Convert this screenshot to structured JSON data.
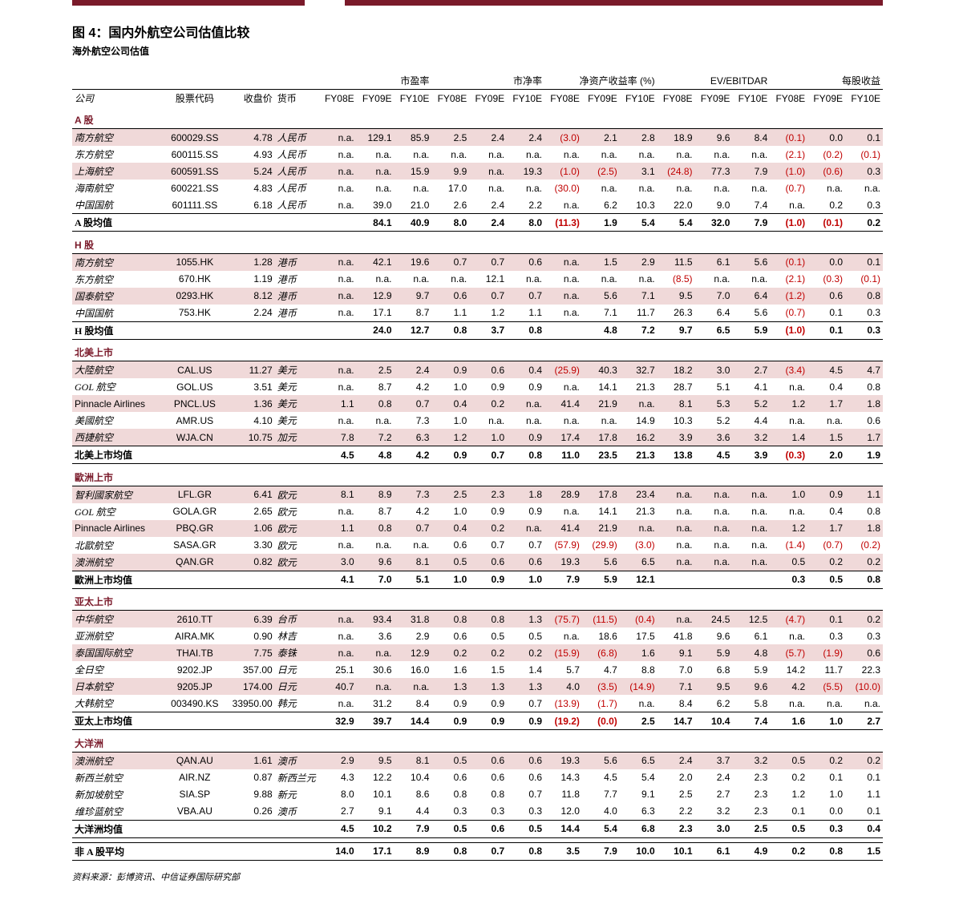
{
  "top_rule_color": "#7a1a2a",
  "title": "图 4：国内外航空公司估值比较",
  "subtitle": "海外航空公司估值",
  "header": {
    "groups": [
      "市盈率",
      "市净率",
      "净资产收益率 (%)",
      "EV/EBITDAR",
      "每股收益"
    ],
    "cols_left": [
      "公司",
      "股票代码",
      "收盘价",
      "货币"
    ],
    "years": [
      "FY08E",
      "FY09E",
      "FY10E"
    ]
  },
  "sections": [
    {
      "head": "A 股",
      "rows": [
        {
          "hl": true,
          "name": "南方航空",
          "code": "600029.SS",
          "price": "4.78",
          "curr": "人民币",
          "v": [
            "n.a.",
            "129.1",
            "85.9",
            "2.5",
            "2.4",
            "2.4",
            "(3.0)",
            "2.1",
            "2.8",
            "18.9",
            "9.6",
            "8.4",
            "(0.1)",
            "0.0",
            "0.1"
          ]
        },
        {
          "name": "东方航空",
          "code": "600115.SS",
          "price": "4.93",
          "curr": "人民币",
          "v": [
            "n.a.",
            "n.a.",
            "n.a.",
            "n.a.",
            "n.a.",
            "n.a.",
            "n.a.",
            "n.a.",
            "n.a.",
            "n.a.",
            "n.a.",
            "n.a.",
            "(2.1)",
            "(0.2)",
            "(0.1)"
          ]
        },
        {
          "hl": true,
          "name": "上海航空",
          "code": "600591.SS",
          "price": "5.24",
          "curr": "人民币",
          "v": [
            "n.a.",
            "n.a.",
            "15.9",
            "9.9",
            "n.a.",
            "19.3",
            "(1.0)",
            "(2.5)",
            "3.1",
            "(24.8)",
            "77.3",
            "7.9",
            "(1.0)",
            "(0.6)",
            "0.3"
          ]
        },
        {
          "name": "海南航空",
          "code": "600221.SS",
          "price": "4.83",
          "curr": "人民币",
          "v": [
            "n.a.",
            "n.a.",
            "n.a.",
            "17.0",
            "n.a.",
            "n.a.",
            "(30.0)",
            "n.a.",
            "n.a.",
            "n.a.",
            "n.a.",
            "n.a.",
            "(0.7)",
            "n.a.",
            "n.a."
          ]
        },
        {
          "name": "中国国航",
          "code": "601111.SS",
          "price": "6.18",
          "curr": "人民币",
          "v": [
            "n.a.",
            "39.0",
            "21.0",
            "2.6",
            "2.4",
            "2.2",
            "n.a.",
            "6.2",
            "10.3",
            "22.0",
            "9.0",
            "7.4",
            "n.a.",
            "0.2",
            "0.3"
          ]
        }
      ],
      "sum": {
        "name": "A 股均值",
        "v": [
          "",
          "84.1",
          "40.9",
          "8.0",
          "2.4",
          "8.0",
          "(11.3)",
          "1.9",
          "5.4",
          "5.4",
          "32.0",
          "7.9",
          "(1.0)",
          "(0.1)",
          "0.2"
        ]
      }
    },
    {
      "head": "H 股",
      "rows": [
        {
          "hl": true,
          "name": "南方航空",
          "code": "1055.HK",
          "price": "1.28",
          "curr": "港币",
          "v": [
            "n.a.",
            "42.1",
            "19.6",
            "0.7",
            "0.7",
            "0.6",
            "n.a.",
            "1.5",
            "2.9",
            "11.5",
            "6.1",
            "5.6",
            "(0.1)",
            "0.0",
            "0.1"
          ]
        },
        {
          "name": "东方航空",
          "code": "670.HK",
          "price": "1.19",
          "curr": "港币",
          "v": [
            "n.a.",
            "n.a.",
            "n.a.",
            "n.a.",
            "12.1",
            "n.a.",
            "n.a.",
            "n.a.",
            "n.a.",
            "(8.5)",
            "n.a.",
            "n.a.",
            "(2.1)",
            "(0.3)",
            "(0.1)"
          ]
        },
        {
          "hl": true,
          "name": "国泰航空",
          "code": "0293.HK",
          "price": "8.12",
          "curr": "港币",
          "v": [
            "n.a.",
            "12.9",
            "9.7",
            "0.6",
            "0.7",
            "0.7",
            "n.a.",
            "5.6",
            "7.1",
            "9.5",
            "7.0",
            "6.4",
            "(1.2)",
            "0.6",
            "0.8"
          ]
        },
        {
          "name": "中国国航",
          "code": "753.HK",
          "price": "2.24",
          "curr": "港币",
          "v": [
            "n.a.",
            "17.1",
            "8.7",
            "1.1",
            "1.2",
            "1.1",
            "n.a.",
            "7.1",
            "11.7",
            "26.3",
            "6.4",
            "5.6",
            "(0.7)",
            "0.1",
            "0.3"
          ]
        }
      ],
      "sum": {
        "name": "H 股均值",
        "v": [
          "",
          "24.0",
          "12.7",
          "0.8",
          "3.7",
          "0.8",
          "",
          "4.8",
          "7.2",
          "9.7",
          "6.5",
          "5.9",
          "(1.0)",
          "0.1",
          "0.3"
        ]
      }
    },
    {
      "head": "北美上市",
      "rows": [
        {
          "hl": true,
          "name": "大陸航空",
          "code": "CAL.US",
          "price": "11.27",
          "curr": "美元",
          "v": [
            "n.a.",
            "2.5",
            "2.4",
            "0.9",
            "0.6",
            "0.4",
            "(25.9)",
            "40.3",
            "32.7",
            "18.2",
            "3.0",
            "2.7",
            "(3.4)",
            "4.5",
            "4.7"
          ]
        },
        {
          "name": "GOL 航空",
          "code": "GOL.US",
          "price": "3.51",
          "curr": "美元",
          "v": [
            "n.a.",
            "8.7",
            "4.2",
            "1.0",
            "0.9",
            "0.9",
            "n.a.",
            "14.1",
            "21.3",
            "28.7",
            "5.1",
            "4.1",
            "n.a.",
            "0.4",
            "0.8"
          ]
        },
        {
          "hl": true,
          "en": true,
          "name": "Pinnacle Airlines",
          "code": "PNCL.US",
          "price": "1.36",
          "curr": "美元",
          "v": [
            "1.1",
            "0.8",
            "0.7",
            "0.4",
            "0.2",
            "n.a.",
            "41.4",
            "21.9",
            "n.a.",
            "8.1",
            "5.3",
            "5.2",
            "1.2",
            "1.7",
            "1.8"
          ]
        },
        {
          "name": "美國航空",
          "code": "AMR.US",
          "price": "4.10",
          "curr": "美元",
          "v": [
            "n.a.",
            "n.a.",
            "7.3",
            "1.0",
            "n.a.",
            "n.a.",
            "n.a.",
            "n.a.",
            "14.9",
            "10.3",
            "5.2",
            "4.4",
            "n.a.",
            "n.a.",
            "0.6"
          ]
        },
        {
          "hl": true,
          "name": "西捷航空",
          "code": "WJA.CN",
          "price": "10.75",
          "curr": "加元",
          "v": [
            "7.8",
            "7.2",
            "6.3",
            "1.2",
            "1.0",
            "0.9",
            "17.4",
            "17.8",
            "16.2",
            "3.9",
            "3.6",
            "3.2",
            "1.4",
            "1.5",
            "1.7"
          ]
        }
      ],
      "sum": {
        "name": "北美上市均值",
        "v": [
          "4.5",
          "4.8",
          "4.2",
          "0.9",
          "0.7",
          "0.8",
          "11.0",
          "23.5",
          "21.3",
          "13.8",
          "4.5",
          "3.9",
          "(0.3)",
          "2.0",
          "1.9"
        ]
      }
    },
    {
      "head": "歐洲上市",
      "rows": [
        {
          "hl": true,
          "name": "智利國家航空",
          "code": "LFL.GR",
          "price": "6.41",
          "curr": "欧元",
          "v": [
            "8.1",
            "8.9",
            "7.3",
            "2.5",
            "2.3",
            "1.8",
            "28.9",
            "17.8",
            "23.4",
            "n.a.",
            "n.a.",
            "n.a.",
            "1.0",
            "0.9",
            "1.1"
          ]
        },
        {
          "name": "GOL 航空",
          "code": "GOLA.GR",
          "price": "2.65",
          "curr": "欧元",
          "v": [
            "n.a.",
            "8.7",
            "4.2",
            "1.0",
            "0.9",
            "0.9",
            "n.a.",
            "14.1",
            "21.3",
            "n.a.",
            "n.a.",
            "n.a.",
            "n.a.",
            "0.4",
            "0.8"
          ]
        },
        {
          "hl": true,
          "en": true,
          "name": "Pinnacle Airlines",
          "code": "PBQ.GR",
          "price": "1.06",
          "curr": "欧元",
          "v": [
            "1.1",
            "0.8",
            "0.7",
            "0.4",
            "0.2",
            "n.a.",
            "41.4",
            "21.9",
            "n.a.",
            "n.a.",
            "n.a.",
            "n.a.",
            "1.2",
            "1.7",
            "1.8"
          ]
        },
        {
          "name": "北歐航空",
          "code": "SASA.GR",
          "price": "3.30",
          "curr": "欧元",
          "v": [
            "n.a.",
            "n.a.",
            "n.a.",
            "0.6",
            "0.7",
            "0.7",
            "(57.9)",
            "(29.9)",
            "(3.0)",
            "n.a.",
            "n.a.",
            "n.a.",
            "(1.4)",
            "(0.7)",
            "(0.2)"
          ]
        },
        {
          "hl": true,
          "name": "澳洲航空",
          "code": "QAN.GR",
          "price": "0.82",
          "curr": "欧元",
          "v": [
            "3.0",
            "9.6",
            "8.1",
            "0.5",
            "0.6",
            "0.6",
            "19.3",
            "5.6",
            "6.5",
            "n.a.",
            "n.a.",
            "n.a.",
            "0.5",
            "0.2",
            "0.2"
          ]
        }
      ],
      "sum": {
        "name": "歐洲上市均值",
        "v": [
          "4.1",
          "7.0",
          "5.1",
          "1.0",
          "0.9",
          "1.0",
          "7.9",
          "5.9",
          "12.1",
          "",
          "",
          "",
          "0.3",
          "0.5",
          "0.8"
        ]
      }
    },
    {
      "head": "亚太上市",
      "rows": [
        {
          "hl": true,
          "name": "中华航空",
          "code": "2610.TT",
          "price": "6.39",
          "curr": "台币",
          "v": [
            "n.a.",
            "93.4",
            "31.8",
            "0.8",
            "0.8",
            "1.3",
            "(75.7)",
            "(11.5)",
            "(0.4)",
            "n.a.",
            "24.5",
            "12.5",
            "(4.7)",
            "0.1",
            "0.2"
          ]
        },
        {
          "name": "亚洲航空",
          "code": "AIRA.MK",
          "price": "0.90",
          "curr": "林吉",
          "v": [
            "n.a.",
            "3.6",
            "2.9",
            "0.6",
            "0.5",
            "0.5",
            "n.a.",
            "18.6",
            "17.5",
            "41.8",
            "9.6",
            "6.1",
            "n.a.",
            "0.3",
            "0.3"
          ]
        },
        {
          "hl": true,
          "name": "泰国国际航空",
          "code": "THAI.TB",
          "price": "7.75",
          "curr": "泰铢",
          "v": [
            "n.a.",
            "n.a.",
            "12.9",
            "0.2",
            "0.2",
            "0.2",
            "(15.9)",
            "(6.8)",
            "1.6",
            "9.1",
            "5.9",
            "4.8",
            "(5.7)",
            "(1.9)",
            "0.6"
          ]
        },
        {
          "name": "全日空",
          "code": "9202.JP",
          "price": "357.00",
          "curr": "日元",
          "v": [
            "25.1",
            "30.6",
            "16.0",
            "1.6",
            "1.5",
            "1.4",
            "5.7",
            "4.7",
            "8.8",
            "7.0",
            "6.8",
            "5.9",
            "14.2",
            "11.7",
            "22.3"
          ]
        },
        {
          "hl": true,
          "name": "日本航空",
          "code": "9205.JP",
          "price": "174.00",
          "curr": "日元",
          "v": [
            "40.7",
            "n.a.",
            "n.a.",
            "1.3",
            "1.3",
            "1.3",
            "4.0",
            "(3.5)",
            "(14.9)",
            "7.1",
            "9.5",
            "9.6",
            "4.2",
            "(5.5)",
            "(10.0)"
          ]
        },
        {
          "name": "大韩航空",
          "code": "003490.KS",
          "price": "33950.00",
          "curr": "韩元",
          "v": [
            "n.a.",
            "31.2",
            "8.4",
            "0.9",
            "0.9",
            "0.7",
            "(13.9)",
            "(1.7)",
            "n.a.",
            "8.4",
            "6.2",
            "5.8",
            "n.a.",
            "n.a.",
            "n.a."
          ]
        }
      ],
      "sum": {
        "name": "亚太上市均值",
        "v": [
          "32.9",
          "39.7",
          "14.4",
          "0.9",
          "0.9",
          "0.9",
          "(19.2)",
          "(0.0)",
          "2.5",
          "14.7",
          "10.4",
          "7.4",
          "1.6",
          "1.0",
          "2.7"
        ]
      }
    },
    {
      "head": "大洋洲",
      "rows": [
        {
          "hl": true,
          "name": "澳洲航空",
          "code": "QAN.AU",
          "price": "1.61",
          "curr": "澳币",
          "v": [
            "2.9",
            "9.5",
            "8.1",
            "0.5",
            "0.6",
            "0.6",
            "19.3",
            "5.6",
            "6.5",
            "2.4",
            "3.7",
            "3.2",
            "0.5",
            "0.2",
            "0.2"
          ]
        },
        {
          "name": "新西兰航空",
          "code": "AIR.NZ",
          "price": "0.87",
          "curr": "新西兰元",
          "v": [
            "4.3",
            "12.2",
            "10.4",
            "0.6",
            "0.6",
            "0.6",
            "14.3",
            "4.5",
            "5.4",
            "2.0",
            "2.4",
            "2.3",
            "0.2",
            "0.1",
            "0.1"
          ]
        },
        {
          "name": "新加坡航空",
          "code": "SIA.SP",
          "price": "9.88",
          "curr": "新元",
          "v": [
            "8.0",
            "10.1",
            "8.6",
            "0.8",
            "0.8",
            "0.7",
            "11.8",
            "7.7",
            "9.1",
            "2.5",
            "2.7",
            "2.3",
            "1.2",
            "1.0",
            "1.1"
          ]
        },
        {
          "name": "维珍蓝航空",
          "code": "VBA.AU",
          "price": "0.26",
          "curr": "澳币",
          "v": [
            "2.7",
            "9.1",
            "4.4",
            "0.3",
            "0.3",
            "0.3",
            "12.0",
            "4.0",
            "6.3",
            "2.2",
            "3.2",
            "2.3",
            "0.1",
            "0.0",
            "0.1"
          ]
        }
      ],
      "sum": {
        "name": "大洋洲均值",
        "v": [
          "4.5",
          "10.2",
          "7.9",
          "0.5",
          "0.6",
          "0.5",
          "14.4",
          "5.4",
          "6.8",
          "2.3",
          "3.0",
          "2.5",
          "0.5",
          "0.3",
          "0.4"
        ]
      }
    }
  ],
  "grand": {
    "name": "非 A 股平均",
    "v": [
      "14.0",
      "17.1",
      "8.9",
      "0.8",
      "0.7",
      "0.8",
      "3.5",
      "7.9",
      "10.0",
      "10.1",
      "6.1",
      "4.9",
      "0.2",
      "0.8",
      "1.5"
    ]
  },
  "source": "资料来源：彭博资讯、中信证券国际研究部"
}
